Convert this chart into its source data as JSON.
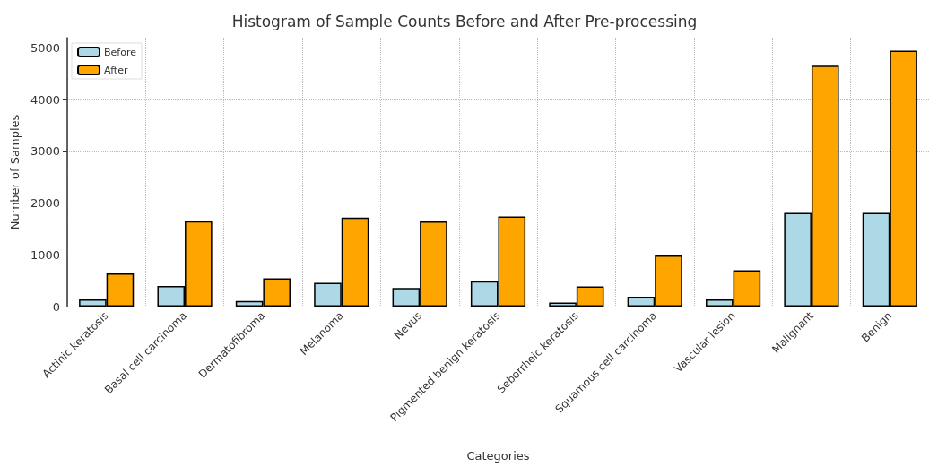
{
  "chart_data": {
    "type": "bar",
    "title": "Histogram of Sample Counts Before and After Pre-processing",
    "xlabel": "Categories",
    "ylabel": "Number of Samples",
    "categories": [
      "Actinic keratosis",
      "Basal cell carcinoma",
      "Dermatofibroma",
      "Melanoma",
      "Nevus",
      "Pigmented benign keratosis",
      "Seborrheic keratosis",
      "Squamous cell carcinoma",
      "Vascular lesion",
      "Malignant",
      "Benign"
    ],
    "series": [
      {
        "name": "Before",
        "color": "#add8e6",
        "values": [
          140,
          400,
          110,
          460,
          360,
          490,
          80,
          190,
          140,
          1810,
          1810
        ]
      },
      {
        "name": "After",
        "color": "#ffa500",
        "values": [
          640,
          1650,
          545,
          1720,
          1645,
          1740,
          390,
          990,
          700,
          4660,
          4950
        ]
      }
    ],
    "ylim": [
      0,
      5200
    ],
    "yticks": [
      0,
      1000,
      2000,
      3000,
      4000,
      5000
    ],
    "grid": true,
    "legend": "top left"
  }
}
